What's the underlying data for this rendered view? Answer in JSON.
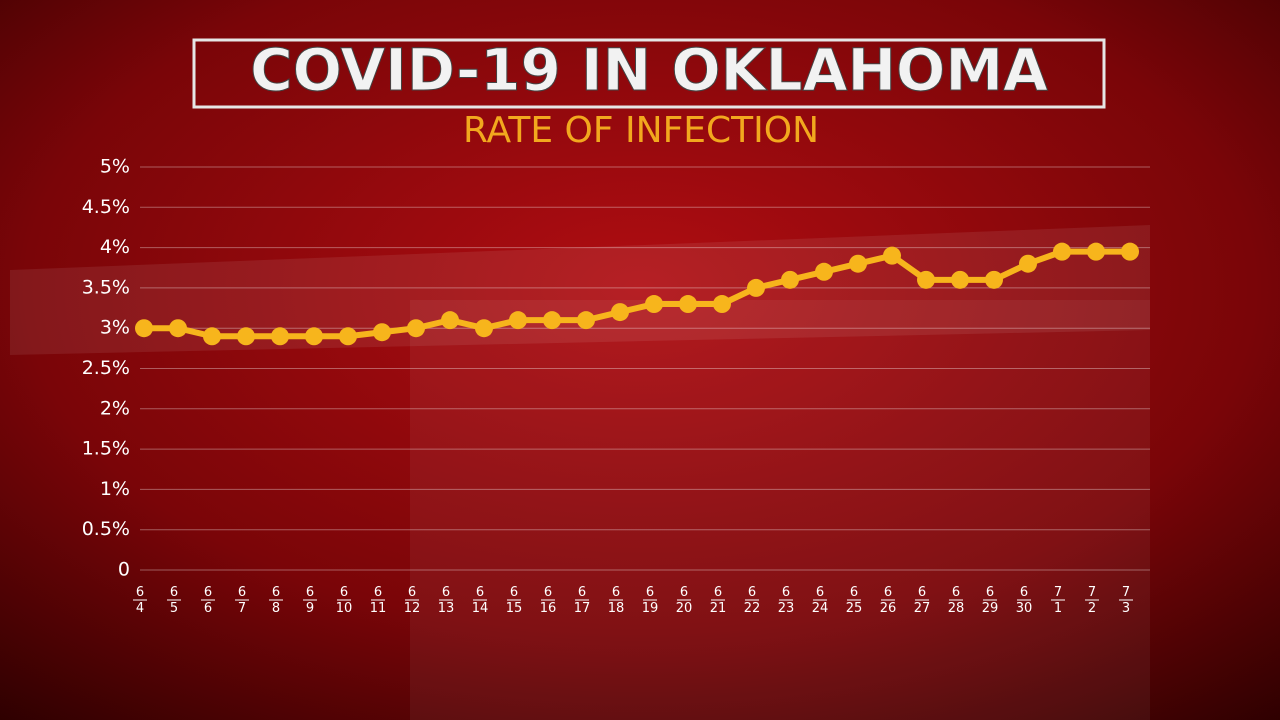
{
  "chart_data": {
    "type": "line",
    "title": "COVID-19 IN OKLAHOMA",
    "subtitle": "RATE OF INFECTION",
    "categories": [
      "6/4",
      "6/5",
      "6/6",
      "6/7",
      "6/8",
      "6/9",
      "6/10",
      "6/11",
      "6/12",
      "6/13",
      "6/14",
      "6/15",
      "6/16",
      "6/17",
      "6/18",
      "6/19",
      "6/20",
      "6/21",
      "6/22",
      "6/23",
      "6/24",
      "6/25",
      "6/26",
      "6/27",
      "6/28",
      "6/29",
      "6/30",
      "7/1",
      "7/2",
      "7/3"
    ],
    "series": [
      {
        "name": "Rate of infection",
        "color": "#f7b51c",
        "values": [
          3.0,
          3.0,
          2.9,
          2.9,
          2.9,
          2.9,
          2.9,
          2.95,
          3.0,
          3.1,
          3.0,
          3.1,
          3.1,
          3.1,
          3.2,
          3.3,
          3.3,
          3.3,
          3.5,
          3.6,
          3.7,
          3.8,
          3.9,
          3.6,
          3.6,
          3.6,
          3.8,
          3.95,
          3.95,
          3.95
        ]
      }
    ],
    "ylim": [
      0,
      5
    ],
    "yticks": [
      0,
      {
        "value": 0.5,
        "label": "0.5%"
      },
      {
        "value": 1,
        "label": "1%"
      },
      {
        "value": 1.5,
        "label": "1.5%"
      },
      {
        "value": 2,
        "label": "2%"
      },
      {
        "value": 2.5,
        "label": "2.5%"
      },
      {
        "value": 3,
        "label": "3%"
      },
      {
        "value": 3.5,
        "label": "3.5%"
      },
      {
        "value": 4,
        "label": "4%"
      },
      {
        "value": 4.5,
        "label": "4.5%"
      },
      {
        "value": 5,
        "label": "5%"
      }
    ],
    "grid": true
  }
}
